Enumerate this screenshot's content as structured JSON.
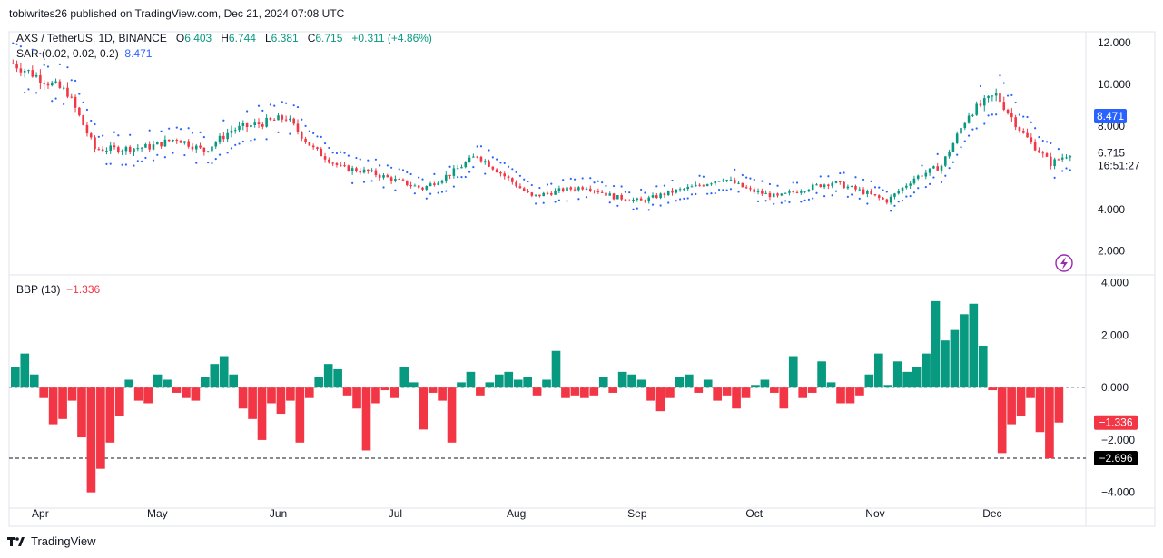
{
  "header": {
    "published": "tobiwrites26 published on TradingView.com, Dec 21, 2024 07:08 UTC"
  },
  "symbol": {
    "name": "AXS / TetherUS, 1D, BINANCE",
    "o_label": "O",
    "o": "6.403",
    "h_label": "H",
    "h": "6.744",
    "l_label": "L",
    "l": "6.381",
    "c_label": "C",
    "c": "6.715",
    "change": "+0.311 (+4.86%)"
  },
  "sar": {
    "label": "SAR (0.02, 0.02, 0.2)",
    "value": "8.471"
  },
  "bbp": {
    "label": "BBP (13)",
    "value": "−1.336"
  },
  "price_axis": {
    "ticks": [
      "12.000",
      "10.000",
      "8.000",
      "6.715",
      "4.000",
      "2.000"
    ],
    "countdown": "16:51:27",
    "sar_badge": "8.471"
  },
  "bbp_axis": {
    "ticks": [
      "4.000",
      "2.000",
      "0.000",
      "−2.000",
      "−4.000"
    ],
    "current_badge": "−1.336",
    "line_badge": "−2.696"
  },
  "x_axis": {
    "months": [
      "Apr",
      "May",
      "Jun",
      "Jul",
      "Aug",
      "Sep",
      "Oct",
      "Nov",
      "Dec"
    ]
  },
  "footer": {
    "brand": "TradingView"
  },
  "colors": {
    "up": "#089981",
    "down": "#f23645",
    "sar": "#2962ff",
    "grid": "#e0e3eb"
  },
  "chart_data": [
    {
      "type": "line",
      "series": [
        {
          "name": "AXS / TetherUS",
          "x": [
            "2024-03-25",
            "2024-04-01",
            "2024-04-08",
            "2024-04-15",
            "2024-04-22",
            "2024-04-29",
            "2024-05-06",
            "2024-05-13",
            "2024-05-20",
            "2024-05-27",
            "2024-06-03",
            "2024-06-10",
            "2024-06-17",
            "2024-06-24",
            "2024-07-01",
            "2024-07-08",
            "2024-07-15",
            "2024-07-22",
            "2024-07-29",
            "2024-08-05",
            "2024-08-12",
            "2024-08-19",
            "2024-08-26",
            "2024-09-02",
            "2024-09-09",
            "2024-09-16",
            "2024-09-23",
            "2024-09-30",
            "2024-10-07",
            "2024-10-14",
            "2024-10-21",
            "2024-10-28",
            "2024-11-04",
            "2024-11-11",
            "2024-11-18",
            "2024-11-25",
            "2024-12-02",
            "2024-12-09",
            "2024-12-16",
            "2024-12-21"
          ],
          "values": [
            11.0,
            10.3,
            9.6,
            6.9,
            6.9,
            7.0,
            7.4,
            6.8,
            7.8,
            8.1,
            8.4,
            6.9,
            6.0,
            5.8,
            5.4,
            5.0,
            5.7,
            6.6,
            5.6,
            4.6,
            4.9,
            5.1,
            4.6,
            4.4,
            4.8,
            5.1,
            5.5,
            4.9,
            4.6,
            5.0,
            5.3,
            4.9,
            4.4,
            5.5,
            6.1,
            8.6,
            9.5,
            7.6,
            6.2,
            6.715
          ]
        }
      ],
      "indicator": "SAR (0.02, 0.02, 0.2)",
      "ylim": [
        0.9,
        12.3
      ],
      "y_ticks": [
        12,
        10,
        8,
        6.715,
        4,
        2
      ]
    },
    {
      "type": "bar",
      "series": [
        {
          "name": "BBP (13)",
          "values": [
            0.8,
            1.3,
            0.5,
            -0.4,
            -1.4,
            -1.2,
            -0.5,
            -1.9,
            -4.0,
            -3.1,
            -2.1,
            -1.1,
            0.3,
            -0.5,
            -0.6,
            0.5,
            0.3,
            -0.2,
            -0.4,
            -0.5,
            0.4,
            0.9,
            1.2,
            0.5,
            -0.8,
            -1.2,
            -2.0,
            -0.6,
            -1.0,
            -0.5,
            -2.1,
            -0.4,
            0.4,
            0.9,
            0.7,
            -0.3,
            -0.8,
            -2.4,
            -0.6,
            -0.1,
            -0.4,
            0.8,
            0.2,
            -1.6,
            -0.2,
            -0.5,
            -2.1,
            0.2,
            0.6,
            -0.3,
            0.2,
            0.5,
            0.6,
            0.3,
            0.4,
            -0.3,
            0.3,
            1.4,
            -0.4,
            -0.3,
            -0.4,
            -0.3,
            0.4,
            -0.2,
            0.6,
            0.5,
            0.3,
            -0.5,
            -0.9,
            -0.4,
            0.4,
            0.5,
            -0.2,
            0.3,
            -0.5,
            -0.3,
            -0.8,
            -0.4,
            0.1,
            0.3,
            -0.2,
            -0.8,
            1.2,
            -0.4,
            -0.2,
            1.0,
            0.2,
            -0.6,
            -0.6,
            -0.3,
            0.5,
            1.3,
            0.1,
            1.0,
            0.6,
            0.8,
            1.3,
            3.3,
            1.8,
            2.2,
            2.8,
            3.2,
            1.6,
            -0.1,
            -2.5,
            -1.4,
            -1.1,
            -0.4,
            -1.7,
            -2.7,
            -1.336
          ],
          "current": -1.336
        }
      ],
      "reference_line": -2.696,
      "ylim": [
        -4.6,
        4.3
      ],
      "y_ticks": [
        4,
        2,
        0,
        -2,
        -4
      ]
    }
  ]
}
